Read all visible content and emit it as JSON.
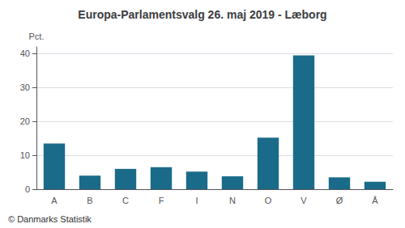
{
  "chart_data": {
    "type": "bar",
    "title": "Europa-Parlamentsvalg 26. maj 2019 - Læborg",
    "categories": [
      "A",
      "B",
      "C",
      "F",
      "I",
      "N",
      "O",
      "V",
      "Ø",
      "Å"
    ],
    "values": [
      13.5,
      4.0,
      6.0,
      6.5,
      5.2,
      3.8,
      15.2,
      39.5,
      3.5,
      2.2
    ],
    "color": "#1a6b8a",
    "ylabel": "Pct.",
    "ylim": [
      0,
      42
    ],
    "yticks": [
      0,
      10,
      20,
      30,
      40
    ],
    "grid": true,
    "annotations": [
      "© Danmarks Statistik"
    ]
  }
}
